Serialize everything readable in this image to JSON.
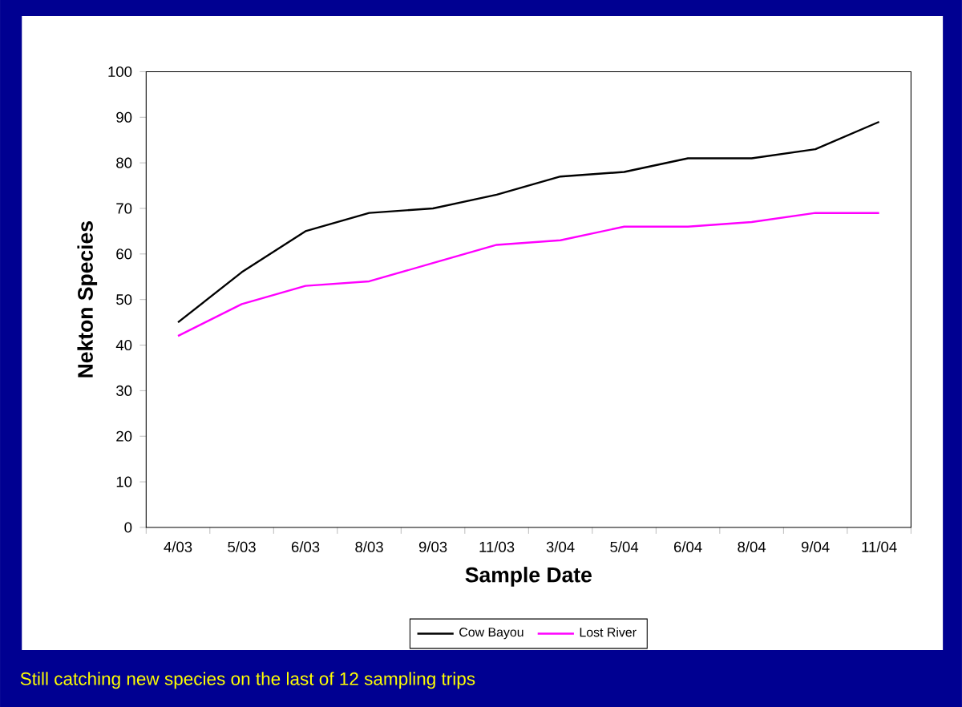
{
  "chart_data": {
    "type": "line",
    "xlabel": "Sample Date",
    "ylabel": "Nekton Species",
    "categories": [
      "4/03",
      "5/03",
      "6/03",
      "8/03",
      "9/03",
      "11/03",
      "3/04",
      "5/04",
      "6/04",
      "8/04",
      "9/04",
      "11/04"
    ],
    "series": [
      {
        "name": "Cow Bayou",
        "color": "#000000",
        "values": [
          45,
          56,
          65,
          69,
          70,
          73,
          77,
          78,
          81,
          81,
          83,
          89
        ]
      },
      {
        "name": "Lost River",
        "color": "#ff00ff",
        "values": [
          42,
          49,
          53,
          54,
          58,
          62,
          63,
          66,
          66,
          67,
          69,
          69
        ]
      }
    ],
    "ylim": [
      0,
      100
    ],
    "yticks": [
      0,
      10,
      20,
      30,
      40,
      50,
      60,
      70,
      80,
      90,
      100
    ],
    "legend": "bottom",
    "marker": "none",
    "line_style": "solid",
    "annotations": [
      "Still catching new species on the last of 12 sampling trips"
    ]
  }
}
